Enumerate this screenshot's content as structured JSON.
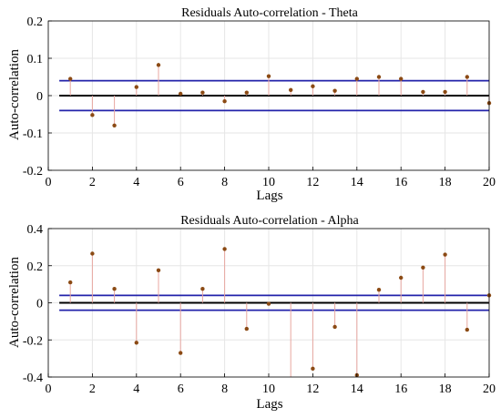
{
  "chart_data": [
    {
      "type": "stem",
      "title": "Residuals Auto-correlation - Theta",
      "xlabel": "Lags",
      "ylabel": "Auto-correlation",
      "xlim": [
        0,
        20
      ],
      "ylim": [
        -0.2,
        0.2
      ],
      "xticks": [
        0,
        2,
        4,
        6,
        8,
        10,
        12,
        14,
        16,
        18,
        20
      ],
      "yticks": [
        -0.2,
        -0.1,
        0,
        0.1,
        0.2
      ],
      "grid": true,
      "x": [
        1,
        2,
        3,
        4,
        5,
        6,
        7,
        8,
        9,
        10,
        11,
        12,
        13,
        14,
        15,
        16,
        17,
        18,
        19,
        20
      ],
      "values": [
        0.045,
        -0.052,
        -0.08,
        0.023,
        0.082,
        0.005,
        0.008,
        -0.015,
        0.008,
        0.052,
        0.015,
        0.025,
        0.013,
        0.045,
        0.05,
        0.045,
        0.01,
        0.01,
        0.05,
        -0.02
      ],
      "confidence_bounds": [
        0.04,
        -0.04
      ],
      "zero_line": 0,
      "colors": {
        "stem": "#e8a7a0",
        "marker": "#8b4a14",
        "bounds": "#2222aa",
        "zero": "#000000"
      }
    },
    {
      "type": "stem",
      "title": "Residuals Auto-correlation - Alpha",
      "xlabel": "Lags",
      "ylabel": "Auto-correlation",
      "xlim": [
        0,
        20
      ],
      "ylim": [
        -0.4,
        0.4
      ],
      "xticks": [
        0,
        2,
        4,
        6,
        8,
        10,
        12,
        14,
        16,
        18,
        20
      ],
      "yticks": [
        -0.4,
        -0.2,
        0,
        0.2,
        0.4
      ],
      "grid": true,
      "x": [
        1,
        2,
        3,
        4,
        5,
        6,
        7,
        8,
        9,
        10,
        11,
        12,
        13,
        14,
        15,
        16,
        17,
        18,
        19,
        20
      ],
      "values": [
        0.11,
        0.265,
        0.075,
        -0.215,
        0.175,
        -0.27,
        0.075,
        0.29,
        -0.14,
        -0.005,
        -0.41,
        -0.355,
        -0.13,
        -0.39,
        0.07,
        0.135,
        0.19,
        0.26,
        -0.145,
        0.04
      ],
      "confidence_bounds": [
        0.04,
        -0.04
      ],
      "zero_line": 0,
      "colors": {
        "stem": "#e8a7a0",
        "marker": "#8b4a14",
        "bounds": "#2222aa",
        "zero": "#000000"
      }
    }
  ]
}
